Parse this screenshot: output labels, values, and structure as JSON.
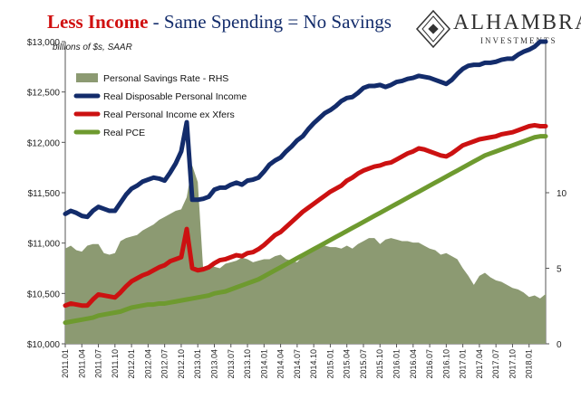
{
  "title": {
    "part1": "Less Income",
    "part2": " - Same Spending = No Savings"
  },
  "units_note": "billions of $s, SAAR",
  "logo": {
    "name": "ALHAMBRA",
    "sub": "INVESTMENTS"
  },
  "colors": {
    "savings": "#8c9a72",
    "disposable_income": "#132c6b",
    "income_ex_xfers": "#cc1111",
    "pce": "#6e9a2f"
  },
  "chart_data": {
    "type": "line",
    "units": "billions of $s, SAAR",
    "x_tick_labels": [
      "2011.01",
      "2011.04",
      "2011.07",
      "2011.10",
      "2012.01",
      "2012.04",
      "2012.07",
      "2012.10",
      "2013.01",
      "2013.04",
      "2013.07",
      "2013.10",
      "2014.01",
      "2014.04",
      "2014.07",
      "2014.10",
      "2015.01",
      "2015.04",
      "2015.07",
      "2015.10",
      "2016.01",
      "2016.04",
      "2016.07",
      "2016.10",
      "2017.01",
      "2017.04",
      "2017.07",
      "2017.10",
      "2018.01"
    ],
    "y_left": {
      "range": [
        10000,
        13000
      ],
      "ticks": [
        10000,
        10500,
        11000,
        11500,
        12000,
        12500,
        13000
      ],
      "tick_labels": [
        "$10,000",
        "$10,500",
        "$11,000",
        "$11,500",
        "$12,000",
        "$12,500",
        "$13,000"
      ]
    },
    "y_right": {
      "range": [
        0,
        20
      ],
      "ticks": [
        0,
        5,
        10
      ],
      "tick_labels": [
        "0",
        "5",
        "10"
      ]
    },
    "legend": {
      "placement": "upper-left",
      "items": [
        {
          "name": "Personal Savings Rate - RHS",
          "kind": "area"
        },
        {
          "name": "Real Disposable Personal Income",
          "kind": "line"
        },
        {
          "name": "Real Personal Income ex Xfers",
          "kind": "line"
        },
        {
          "name": "Real PCE",
          "kind": "line"
        }
      ]
    },
    "series": [
      {
        "name": "Personal Savings Rate - RHS",
        "axis": "right",
        "type": "area",
        "values": [
          6.3,
          6.5,
          6.2,
          6.1,
          6.5,
          6.6,
          6.6,
          6.0,
          5.9,
          6.0,
          6.8,
          7.0,
          7.1,
          7.2,
          7.5,
          7.7,
          7.9,
          8.2,
          8.4,
          8.6,
          8.8,
          8.9,
          9.7,
          11.8,
          10.7,
          4.8,
          5.2,
          5.1,
          5.0,
          5.3,
          5.4,
          5.5,
          5.7,
          5.6,
          5.4,
          5.5,
          5.6,
          5.6,
          5.8,
          5.9,
          5.6,
          5.5,
          5.4,
          5.8,
          6.0,
          6.2,
          6.4,
          6.5,
          6.4,
          6.4,
          6.3,
          6.5,
          6.3,
          6.6,
          6.8,
          7.0,
          7.0,
          6.6,
          6.9,
          7.0,
          6.9,
          6.8,
          6.8,
          6.7,
          6.7,
          6.5,
          6.3,
          6.2,
          5.9,
          6.0,
          5.8,
          5.6,
          5.0,
          4.5,
          3.9,
          4.5,
          4.7,
          4.4,
          4.2,
          4.1,
          3.9,
          3.7,
          3.6,
          3.4,
          3.1,
          3.2,
          3.0,
          3.3
        ]
      },
      {
        "name": "Real Disposable Personal Income",
        "axis": "left",
        "type": "line",
        "values": [
          11290,
          11320,
          11300,
          11270,
          11260,
          11320,
          11360,
          11340,
          11320,
          11320,
          11400,
          11480,
          11540,
          11570,
          11610,
          11630,
          11650,
          11640,
          11620,
          11700,
          11790,
          11910,
          12200,
          11430,
          11430,
          11440,
          11460,
          11530,
          11550,
          11550,
          11580,
          11600,
          11580,
          11620,
          11630,
          11650,
          11710,
          11780,
          11820,
          11850,
          11910,
          11960,
          12020,
          12060,
          12130,
          12190,
          12240,
          12290,
          12320,
          12360,
          12410,
          12440,
          12450,
          12490,
          12540,
          12560,
          12560,
          12570,
          12550,
          12570,
          12600,
          12610,
          12630,
          12640,
          12660,
          12650,
          12640,
          12620,
          12600,
          12580,
          12620,
          12680,
          12730,
          12760,
          12770,
          12770,
          12790,
          12790,
          12800,
          12820,
          12830,
          12830,
          12870,
          12900,
          12920,
          12950,
          13000,
          13000
        ]
      },
      {
        "name": "Real Personal Income ex Xfers",
        "axis": "left",
        "type": "line",
        "values": [
          10380,
          10400,
          10390,
          10380,
          10380,
          10440,
          10490,
          10480,
          10470,
          10460,
          10510,
          10570,
          10620,
          10650,
          10680,
          10700,
          10730,
          10760,
          10780,
          10820,
          10840,
          10860,
          11140,
          10750,
          10730,
          10740,
          10760,
          10800,
          10830,
          10840,
          10860,
          10880,
          10870,
          10900,
          10910,
          10940,
          10980,
          11030,
          11080,
          11110,
          11160,
          11210,
          11260,
          11310,
          11350,
          11390,
          11430,
          11470,
          11510,
          11540,
          11570,
          11620,
          11650,
          11690,
          11720,
          11740,
          11760,
          11770,
          11790,
          11800,
          11830,
          11860,
          11890,
          11910,
          11940,
          11930,
          11910,
          11890,
          11870,
          11860,
          11890,
          11930,
          11970,
          11990,
          12010,
          12030,
          12040,
          12050,
          12060,
          12080,
          12090,
          12100,
          12120,
          12140,
          12160,
          12170,
          12160,
          12160
        ]
      },
      {
        "name": "Real PCE",
        "axis": "left",
        "type": "line",
        "values": [
          10210,
          10220,
          10230,
          10240,
          10250,
          10260,
          10280,
          10290,
          10300,
          10310,
          10320,
          10340,
          10360,
          10370,
          10380,
          10390,
          10390,
          10400,
          10400,
          10410,
          10420,
          10430,
          10440,
          10450,
          10460,
          10470,
          10480,
          10500,
          10510,
          10520,
          10540,
          10560,
          10580,
          10600,
          10620,
          10640,
          10670,
          10700,
          10730,
          10760,
          10790,
          10820,
          10850,
          10880,
          10910,
          10940,
          10970,
          11000,
          11030,
          11060,
          11090,
          11120,
          11150,
          11180,
          11210,
          11240,
          11270,
          11300,
          11330,
          11360,
          11390,
          11420,
          11450,
          11480,
          11510,
          11540,
          11570,
          11600,
          11630,
          11660,
          11690,
          11720,
          11750,
          11780,
          11810,
          11840,
          11870,
          11890,
          11910,
          11930,
          11950,
          11970,
          11990,
          12010,
          12030,
          12050,
          12060,
          12060
        ]
      }
    ]
  }
}
